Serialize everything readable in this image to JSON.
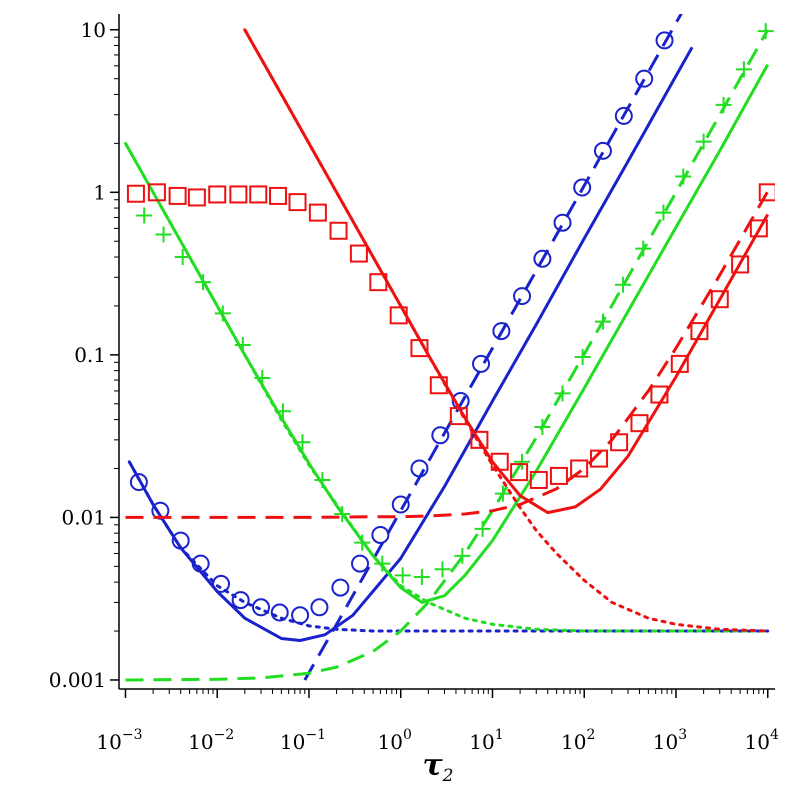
{
  "chart_data": {
    "type": "line",
    "title": "",
    "xscale": "log",
    "yscale": "log",
    "xlim": [
      0.00085,
      12000
    ],
    "ylim": [
      0.00088,
      12.5
    ],
    "grid": false,
    "legend": "none",
    "xlabel": {
      "main": "τ",
      "sub": "2"
    },
    "ylabel": "",
    "x_ticks": [
      {
        "value": 0.001,
        "base": "10",
        "exp": "−3"
      },
      {
        "value": 0.01,
        "base": "10",
        "exp": "−2"
      },
      {
        "value": 0.1,
        "base": "10",
        "exp": "−1"
      },
      {
        "value": 1,
        "base": "10",
        "exp": "0"
      },
      {
        "value": 10,
        "base": "10",
        "exp": "1"
      },
      {
        "value": 100,
        "base": "10",
        "exp": "2"
      },
      {
        "value": 1000,
        "base": "10",
        "exp": "3"
      },
      {
        "value": 10000,
        "base": "10",
        "exp": "4"
      }
    ],
    "y_ticks": [
      {
        "value": 0.001,
        "label": "0.001"
      },
      {
        "value": 0.01,
        "label": "0.01"
      },
      {
        "value": 0.1,
        "label": "0.1"
      },
      {
        "value": 1,
        "label": "1"
      },
      {
        "value": 10,
        "label": "10"
      }
    ],
    "colors": {
      "red": "#ee1111",
      "green": "#22dd22",
      "blue": "#1a22cc"
    },
    "series": [
      {
        "color": "blue",
        "style": "solid",
        "x": [
          0.0011,
          0.002,
          0.004,
          0.01,
          0.02,
          0.05,
          0.08,
          0.15,
          0.3,
          1,
          3,
          10,
          30,
          100,
          300,
          1000,
          1500
        ],
        "y": [
          0.022,
          0.012,
          0.0065,
          0.0035,
          0.0024,
          0.0018,
          0.00175,
          0.0019,
          0.0025,
          0.0056,
          0.0155,
          0.052,
          0.154,
          0.52,
          1.55,
          5.2,
          7.8
        ]
      },
      {
        "color": "blue",
        "style": "dashed",
        "x": [
          0.09,
          0.2,
          0.5,
          1,
          3,
          10,
          30,
          100,
          300,
          1000,
          1500
        ],
        "y": [
          0.001,
          0.0022,
          0.0055,
          0.011,
          0.033,
          0.11,
          0.33,
          1.1,
          3.3,
          11,
          16.5
        ]
      },
      {
        "color": "blue",
        "style": "dotted",
        "x": [
          0.0011,
          0.002,
          0.004,
          0.01,
          0.02,
          0.05,
          0.1,
          0.2,
          0.5,
          1,
          3,
          10,
          30,
          100,
          1000,
          10000
        ],
        "y": [
          0.022,
          0.012,
          0.0065,
          0.0038,
          0.003,
          0.0024,
          0.00215,
          0.00205,
          0.002,
          0.002,
          0.002,
          0.002,
          0.002,
          0.002,
          0.002,
          0.002
        ]
      },
      {
        "color": "blue",
        "style": "markers",
        "marker": "circle",
        "x": [
          0.0014,
          0.0024,
          0.004,
          0.0066,
          0.011,
          0.018,
          0.03,
          0.048,
          0.08,
          0.13,
          0.22,
          0.36,
          0.6,
          1,
          1.6,
          2.7,
          4.5,
          7.5,
          12.5,
          21,
          35,
          58,
          95,
          160,
          270,
          450,
          750
        ],
        "y": [
          0.0165,
          0.011,
          0.0072,
          0.0052,
          0.0039,
          0.0031,
          0.0028,
          0.0026,
          0.0025,
          0.0028,
          0.0037,
          0.0052,
          0.0078,
          0.012,
          0.02,
          0.032,
          0.052,
          0.088,
          0.14,
          0.23,
          0.39,
          0.65,
          1.07,
          1.8,
          2.95,
          5.0,
          8.6
        ]
      },
      {
        "color": "green",
        "style": "solid",
        "x": [
          0.001,
          0.002,
          0.005,
          0.01,
          0.02,
          0.05,
          0.1,
          0.2,
          0.5,
          1,
          1.7,
          3,
          5,
          10,
          30,
          100,
          300,
          1000,
          3000,
          10000
        ],
        "y": [
          2.0,
          1.0,
          0.4,
          0.2,
          0.1,
          0.041,
          0.0215,
          0.0118,
          0.0058,
          0.0037,
          0.003,
          0.0033,
          0.0044,
          0.0072,
          0.0193,
          0.0624,
          0.185,
          0.61,
          1.8,
          6.1
        ]
      },
      {
        "color": "green",
        "style": "dashed",
        "x": [
          0.001,
          0.01,
          0.03,
          0.1,
          0.2,
          0.5,
          1,
          2,
          5,
          10,
          30,
          100,
          300,
          1000,
          3000,
          10000
        ],
        "y": [
          0.001,
          0.00101,
          0.00103,
          0.0011,
          0.0012,
          0.0015,
          0.002,
          0.003,
          0.006,
          0.011,
          0.031,
          0.101,
          0.301,
          1.0,
          3.0,
          10.0
        ]
      },
      {
        "color": "green",
        "style": "dotted",
        "x": [
          0.001,
          0.002,
          0.005,
          0.01,
          0.02,
          0.05,
          0.1,
          0.2,
          0.5,
          1,
          2,
          5,
          10,
          30,
          100,
          1000,
          10000
        ],
        "y": [
          2.0,
          1.0,
          0.4,
          0.2,
          0.1,
          0.04,
          0.021,
          0.012,
          0.0058,
          0.0038,
          0.003,
          0.0024,
          0.0022,
          0.00205,
          0.002,
          0.002,
          0.002
        ]
      },
      {
        "color": "green",
        "style": "markers",
        "marker": "plus",
        "x": [
          0.0016,
          0.0026,
          0.0042,
          0.007,
          0.0115,
          0.019,
          0.031,
          0.052,
          0.085,
          0.14,
          0.23,
          0.38,
          0.63,
          1.05,
          1.7,
          2.85,
          4.7,
          7.8,
          13,
          21,
          35,
          58,
          96,
          160,
          265,
          440,
          730,
          1200,
          2000,
          3300,
          5500,
          9500
        ],
        "y": [
          0.72,
          0.55,
          0.4,
          0.28,
          0.18,
          0.115,
          0.072,
          0.045,
          0.029,
          0.017,
          0.0105,
          0.007,
          0.0052,
          0.0044,
          0.0043,
          0.0048,
          0.0058,
          0.0085,
          0.014,
          0.022,
          0.036,
          0.058,
          0.097,
          0.16,
          0.27,
          0.45,
          0.75,
          1.25,
          2.05,
          3.45,
          5.7,
          9.8
        ]
      },
      {
        "color": "red",
        "style": "solid",
        "x": [
          0.02,
          0.05,
          0.1,
          0.2,
          0.5,
          1,
          2,
          5,
          10,
          20,
          40,
          80,
          150,
          300,
          1000,
          3000,
          10000
        ],
        "y": [
          10,
          4.0,
          2.0,
          1.0,
          0.4,
          0.2,
          0.1,
          0.041,
          0.022,
          0.0136,
          0.0107,
          0.0116,
          0.0149,
          0.0238,
          0.0733,
          0.219,
          0.73
        ]
      },
      {
        "color": "red",
        "style": "dashed",
        "x": [
          0.001,
          0.01,
          0.1,
          0.5,
          1,
          2,
          5,
          10,
          20,
          50,
          100,
          200,
          500,
          1000,
          3000,
          10000
        ],
        "y": [
          0.01,
          0.01,
          0.01,
          0.0101,
          0.0101,
          0.0102,
          0.0105,
          0.011,
          0.012,
          0.015,
          0.02,
          0.03,
          0.06,
          0.11,
          0.31,
          1.01
        ]
      },
      {
        "color": "red",
        "style": "dotted",
        "x": [
          0.02,
          0.05,
          0.1,
          0.2,
          0.5,
          1,
          2,
          5,
          10,
          20,
          30,
          50,
          100,
          200,
          500,
          1000,
          3000,
          10000
        ],
        "y": [
          10,
          4.0,
          2.0,
          1.0,
          0.4,
          0.2,
          0.1,
          0.04,
          0.021,
          0.0115,
          0.0083,
          0.006,
          0.0041,
          0.003,
          0.0024,
          0.0022,
          0.00205,
          0.002
        ]
      },
      {
        "color": "red",
        "style": "markers",
        "marker": "square",
        "x": [
          0.0013,
          0.0022,
          0.0037,
          0.006,
          0.01,
          0.017,
          0.028,
          0.046,
          0.075,
          0.125,
          0.21,
          0.35,
          0.57,
          0.95,
          1.6,
          2.6,
          4.3,
          7.2,
          12,
          19.5,
          32,
          53,
          88,
          145,
          240,
          400,
          660,
          1100,
          1800,
          3000,
          5000,
          8000
        ],
        "y": [
          0.98,
          1.0,
          0.95,
          0.93,
          0.97,
          0.97,
          0.97,
          0.95,
          0.87,
          0.75,
          0.58,
          0.42,
          0.28,
          0.175,
          0.11,
          0.065,
          0.042,
          0.03,
          0.022,
          0.019,
          0.017,
          0.018,
          0.02,
          0.023,
          0.029,
          0.038,
          0.057,
          0.088,
          0.14,
          0.22,
          0.36,
          0.6
        ]
      },
      {
        "color": "red",
        "style": "markers",
        "marker": "square",
        "x": [
          10000
        ],
        "y": [
          1.0
        ]
      }
    ]
  }
}
